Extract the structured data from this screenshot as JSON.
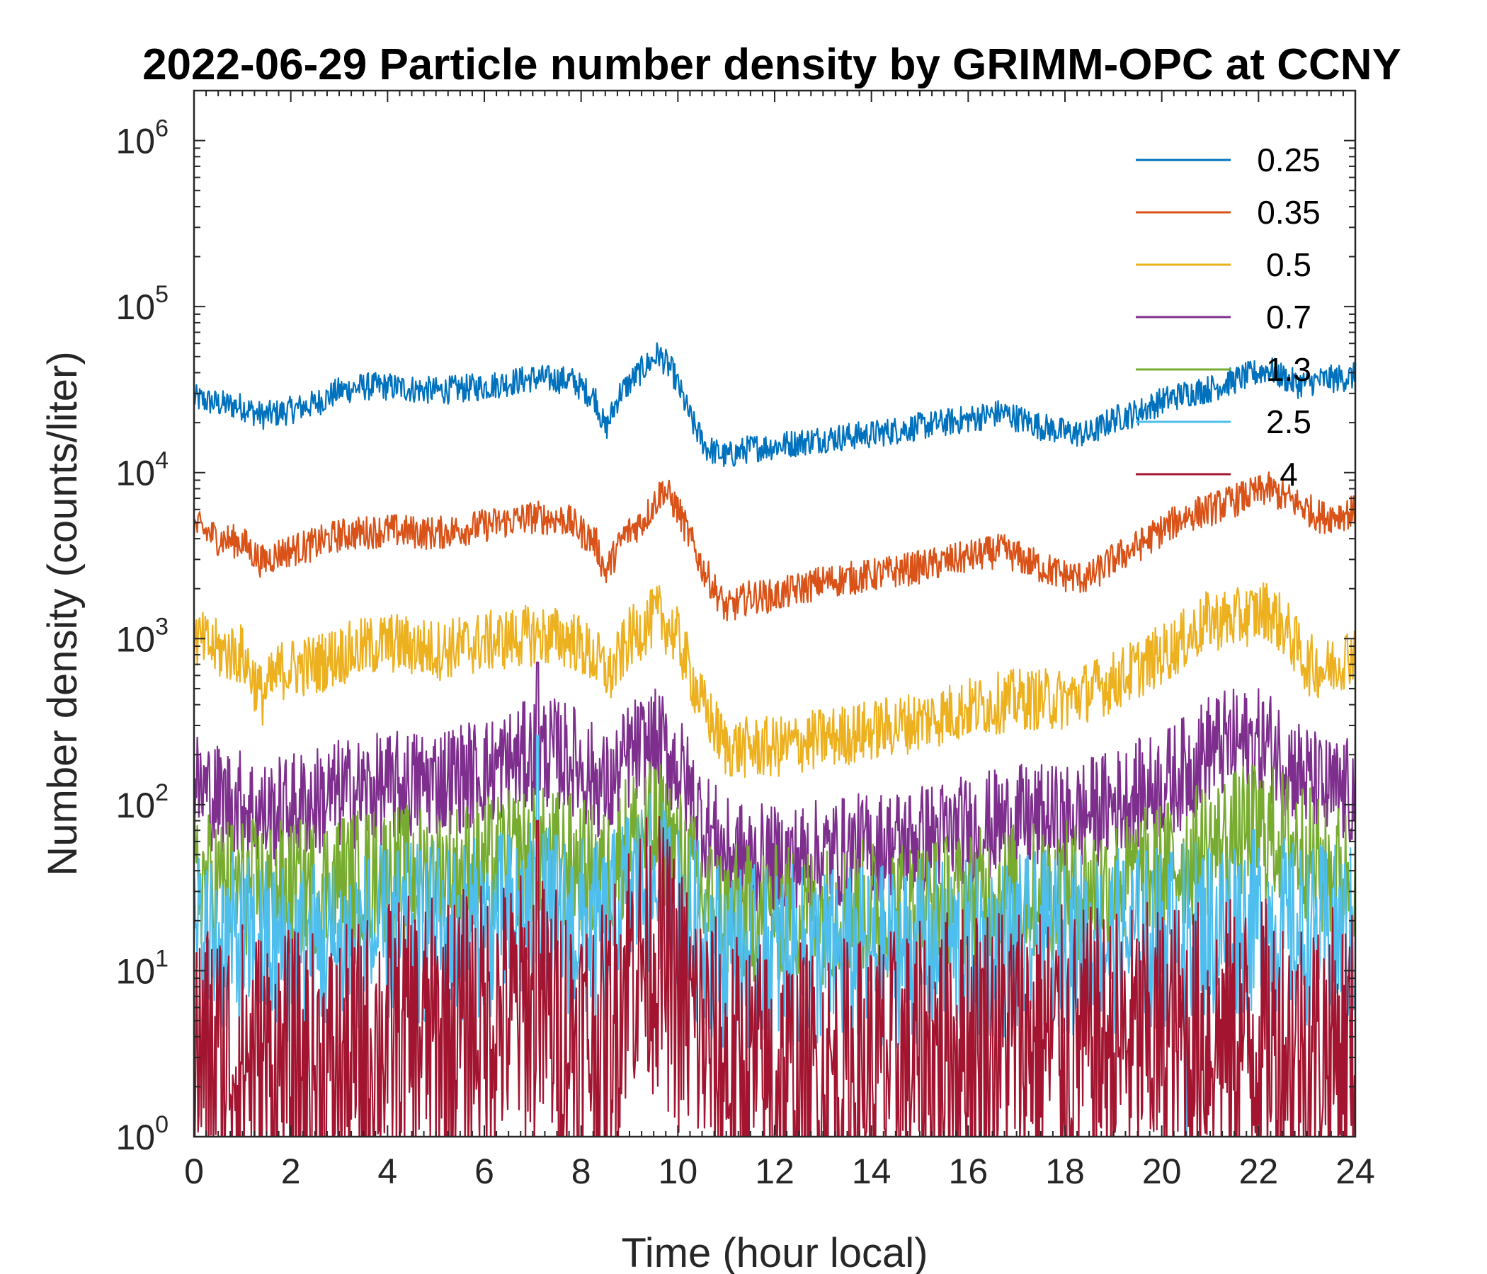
{
  "chart_data": {
    "type": "line",
    "title": "2022-06-29 Particle number density by GRIMM-OPC at CCNY",
    "xlabel": "Time (hour local)",
    "ylabel": "Number density (counts/liter)",
    "xlim": [
      0,
      24
    ],
    "ylim": [
      1,
      2000000
    ],
    "yscale": "log",
    "x_ticks": [
      "0",
      "2",
      "4",
      "6",
      "8",
      "10",
      "12",
      "14",
      "16",
      "18",
      "20",
      "22",
      "24"
    ],
    "y_ticks": [
      {
        "base": "10",
        "exp": "0"
      },
      {
        "base": "10",
        "exp": "1"
      },
      {
        "base": "10",
        "exp": "2"
      },
      {
        "base": "10",
        "exp": "3"
      },
      {
        "base": "10",
        "exp": "4"
      },
      {
        "base": "10",
        "exp": "5"
      },
      {
        "base": "10",
        "exp": "6"
      }
    ],
    "legend_position": "top-right",
    "series": [
      {
        "name": "0.25",
        "color": "#0072BD",
        "noise": 0.05,
        "x": [
          0,
          0.5,
          1.0,
          1.4,
          1.8,
          2.5,
          3.0,
          3.5,
          4.0,
          5.0,
          6.0,
          7.0,
          7.8,
          8.3,
          8.5,
          8.8,
          9.2,
          9.6,
          9.9,
          10.3,
          10.6,
          11.0,
          11.5,
          12.0,
          13.0,
          14.0,
          15.0,
          16.0,
          16.7,
          17.5,
          18.0,
          18.5,
          19.0,
          19.5,
          20.0,
          20.5,
          21.0,
          21.5,
          22.2,
          22.8,
          23.3,
          24.0
        ],
        "y": [
          28000,
          26000,
          25000,
          22000,
          23000,
          26000,
          31000,
          33000,
          33000,
          31000,
          33000,
          37000,
          36000,
          28000,
          18000,
          30000,
          40000,
          52000,
          40000,
          20000,
          14000,
          12500,
          14000,
          14500,
          16000,
          17000,
          19000,
          21000,
          23000,
          19000,
          17500,
          17000,
          21000,
          23000,
          27000,
          30000,
          32000,
          36000,
          42000,
          34000,
          36000,
          38000
        ]
      },
      {
        "name": "0.35",
        "color": "#D95319",
        "noise": 0.06,
        "x": [
          0,
          0.5,
          1.0,
          1.4,
          1.8,
          2.5,
          3.0,
          4.0,
          5.0,
          6.0,
          7.0,
          7.7,
          8.3,
          8.5,
          8.9,
          9.3,
          9.7,
          10.0,
          10.5,
          11.0,
          11.5,
          12.0,
          13.0,
          14.0,
          15.0,
          16.0,
          16.7,
          17.5,
          18.0,
          18.5,
          19.0,
          19.5,
          20.0,
          20.5,
          21.0,
          21.5,
          22.2,
          22.8,
          23.3,
          24.0
        ],
        "y": [
          4800,
          4000,
          3800,
          2900,
          3300,
          3700,
          4200,
          4500,
          4300,
          4800,
          5400,
          5200,
          3800,
          2500,
          4200,
          5200,
          8000,
          6000,
          2700,
          1500,
          1800,
          1800,
          2200,
          2400,
          2700,
          3100,
          3400,
          2700,
          2400,
          2300,
          3000,
          3600,
          4500,
          5500,
          6000,
          6800,
          8000,
          6500,
          5400,
          5800
        ]
      },
      {
        "name": "0.5",
        "color": "#EDB120",
        "noise": 0.11,
        "x": [
          0,
          0.5,
          1.0,
          1.4,
          1.8,
          2.5,
          3.0,
          4.0,
          5.0,
          6.0,
          7.0,
          7.8,
          8.3,
          8.6,
          9.0,
          9.6,
          10.0,
          10.5,
          11.0,
          12.0,
          13.0,
          14.0,
          15.0,
          16.0,
          17.0,
          18.0,
          19.0,
          20.0,
          20.5,
          21.0,
          21.5,
          22.2,
          22.6,
          23.0,
          23.4,
          24.0
        ],
        "y": [
          1000,
          850,
          800,
          450,
          650,
          700,
          800,
          950,
          850,
          950,
          1050,
          1000,
          750,
          600,
          1000,
          1400,
          1000,
          400,
          220,
          220,
          250,
          280,
          320,
          380,
          430,
          430,
          550,
          800,
          1000,
          1300,
          1300,
          1500,
          1100,
          700,
          650,
          850
        ]
      },
      {
        "name": "0.7",
        "color": "#7E2F8E",
        "noise": 0.2,
        "x": [
          0,
          0.5,
          1.0,
          1.5,
          2.0,
          3.0,
          4.0,
          5.0,
          6.0,
          6.8,
          7.2,
          7.8,
          8.3,
          8.6,
          9.0,
          9.6,
          10.0,
          10.5,
          11.0,
          12.0,
          13.0,
          14.0,
          15.0,
          16.0,
          17.0,
          18.0,
          19.0,
          20.0,
          20.5,
          21.0,
          21.5,
          22.2,
          22.8,
          23.3,
          24.0
        ],
        "y": [
          130,
          110,
          100,
          85,
          95,
          115,
          125,
          140,
          155,
          190,
          210,
          190,
          140,
          120,
          200,
          230,
          170,
          80,
          50,
          45,
          50,
          55,
          62,
          70,
          80,
          80,
          100,
          130,
          160,
          220,
          230,
          230,
          160,
          120,
          115
        ],
        "spikes": [
          {
            "x": 7.1,
            "y": 720
          }
        ]
      },
      {
        "name": "1.3",
        "color": "#77AC30",
        "noise": 0.25,
        "x": [
          0,
          1.0,
          2.0,
          3.0,
          4.0,
          5.0,
          6.0,
          7.0,
          7.8,
          8.5,
          9.0,
          9.6,
          10.0,
          10.5,
          11.0,
          12.0,
          13.0,
          14.0,
          15.0,
          16.0,
          17.0,
          18.0,
          19.0,
          20.0,
          21.0,
          22.0,
          22.8,
          23.3,
          24.0
        ],
        "y": [
          35,
          32,
          30,
          35,
          38,
          38,
          42,
          50,
          45,
          35,
          65,
          70,
          50,
          28,
          22,
          22,
          22,
          24,
          24,
          27,
          30,
          30,
          32,
          40,
          55,
          70,
          60,
          40,
          38
        ]
      },
      {
        "name": "2.5",
        "color": "#4DBEEE",
        "noise": 0.33,
        "x": [
          0,
          1.0,
          2.0,
          3.0,
          4.0,
          5.0,
          6.0,
          7.0,
          8.0,
          8.5,
          9.0,
          9.6,
          10.0,
          11.0,
          12.0,
          13.0,
          14.0,
          15.0,
          16.0,
          17.0,
          18.0,
          19.0,
          20.0,
          21.0,
          22.0,
          23.0,
          24.0
        ],
        "y": [
          15,
          14,
          13,
          14,
          16,
          17,
          18,
          22,
          18,
          16,
          30,
          33,
          22,
          12,
          12,
          12,
          12,
          13,
          13,
          14,
          15,
          15,
          16,
          18,
          20,
          16,
          16
        ],
        "spikes": [
          {
            "x": 7.1,
            "y": 260
          },
          {
            "x": 20.5,
            "y": 1
          }
        ]
      },
      {
        "name": "4",
        "color": "#A2142F",
        "noise": 0.5,
        "x": [
          0,
          1.0,
          2.0,
          3.0,
          4.0,
          5.0,
          6.0,
          7.0,
          8.0,
          8.5,
          9.0,
          9.6,
          10.0,
          11.0,
          12.0,
          13.0,
          14.0,
          15.0,
          16.0,
          17.0,
          18.0,
          19.0,
          20.0,
          21.0,
          22.0,
          23.0,
          24.0
        ],
        "y": [
          3,
          3,
          2.5,
          2.5,
          4,
          4,
          5,
          6,
          4,
          3.5,
          12,
          13,
          7,
          2.5,
          2.2,
          2.2,
          2.5,
          2.8,
          4,
          4,
          3.5,
          3.5,
          3.8,
          4,
          4,
          3.5,
          3.5
        ],
        "spikes": [
          {
            "x": 7.1,
            "y": 80
          }
        ]
      }
    ]
  }
}
